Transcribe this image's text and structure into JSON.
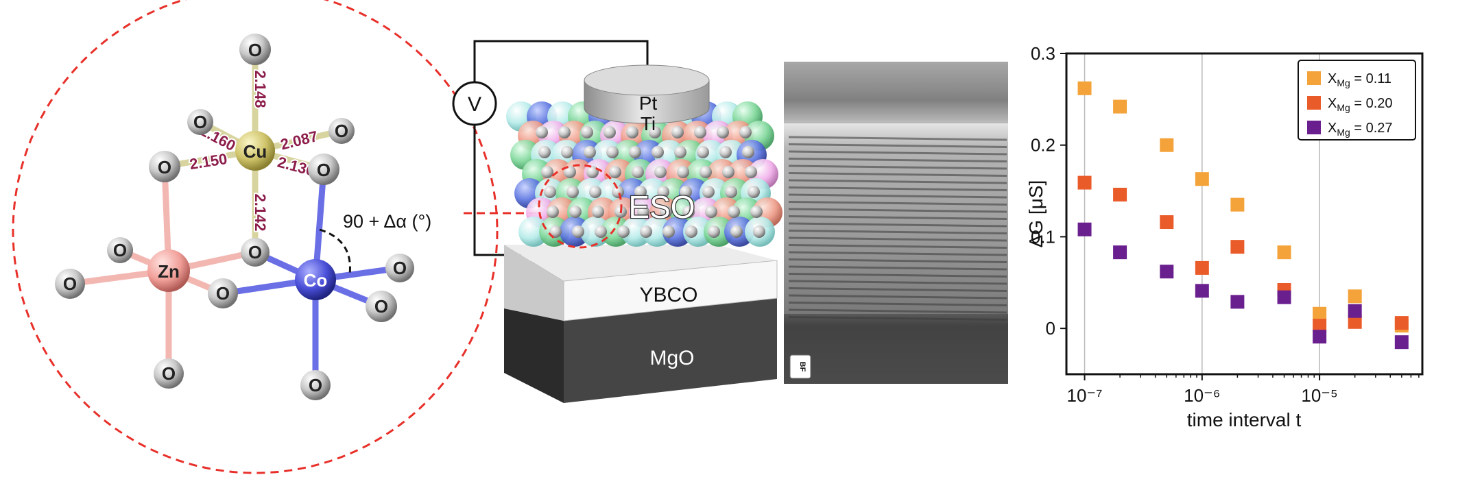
{
  "molecule": {
    "atoms": {
      "cu": "Cu",
      "zn": "Zn",
      "co": "Co",
      "o": "O"
    },
    "bonds": [
      "2.148",
      "2.160",
      "2.087",
      "2.150",
      "2.136",
      "2.142"
    ],
    "angle_label": "90 + Δα (°)"
  },
  "device": {
    "voltmeter": "V",
    "top_electrode": "Pt",
    "adhesion_layer": "Ti",
    "film": "ESO",
    "bottom_electrode": "YBCO",
    "substrate": "MgO"
  },
  "micrograph": {
    "badge": "BF"
  },
  "colors": {
    "dashed_red": "#e8302a",
    "bond_label": "#8c1d4a",
    "cu": "#cfc46a",
    "zn": "#f2a09a",
    "co": "#4a4fd8",
    "o": "#c8c8c8",
    "orange": "#f4a23a",
    "red_orange": "#ea5b2a",
    "purple": "#6a1f8f"
  },
  "chart_data": {
    "type": "scatter",
    "xlabel": "time interval t",
    "ylabel": "ΔG [μS]",
    "x_scale": "log",
    "xlim": [
      7e-08,
      7.5e-05
    ],
    "ylim": [
      -0.05,
      0.3
    ],
    "xticks": [
      1e-07,
      1e-06,
      1e-05
    ],
    "xtick_labels": [
      "10⁻⁷",
      "10⁻⁶",
      "10⁻⁵"
    ],
    "yticks": [
      0,
      0.1,
      0.2,
      0.3
    ],
    "ytick_labels": [
      "0",
      "0.1",
      "0.2",
      "0.3"
    ],
    "grid": "vertical",
    "legend": "top-right",
    "x": [
      1e-07,
      2e-07,
      5e-07,
      1e-06,
      2e-06,
      5e-06,
      1e-05,
      2e-05,
      5e-05
    ],
    "series": [
      {
        "name": "X_Mg = 0.11",
        "legend_base": "X",
        "legend_sub": "Mg",
        "legend_value": " = 0.11",
        "color": "#f4a23a",
        "values": [
          0.262,
          0.242,
          0.2,
          0.163,
          0.135,
          0.083,
          0.016,
          0.035,
          0.003
        ]
      },
      {
        "name": "X_Mg = 0.20",
        "legend_base": "X",
        "legend_sub": "Mg",
        "legend_value": " = 0.20",
        "color": "#ea5b2a",
        "values": [
          0.159,
          0.146,
          0.116,
          0.066,
          0.089,
          0.042,
          0.003,
          0.007,
          0.006
        ]
      },
      {
        "name": "X_Mg = 0.27",
        "legend_base": "X",
        "legend_sub": "Mg",
        "legend_value": " = 0.27",
        "color": "#6a1f8f",
        "values": [
          0.108,
          0.083,
          0.062,
          0.041,
          0.029,
          0.034,
          -0.009,
          0.019,
          -0.015
        ]
      }
    ]
  }
}
